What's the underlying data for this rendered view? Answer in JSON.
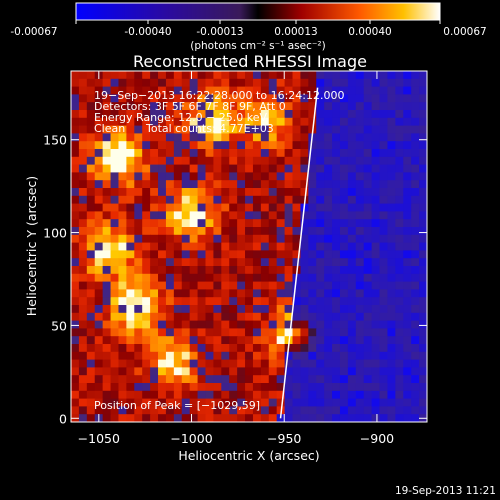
{
  "colorbar": {
    "tick_labels": [
      "-0.00067",
      "-0.00040",
      "-0.00013",
      "0.00013",
      "0.00040",
      "0.00067"
    ],
    "units_label": "(photons cm⁻² s⁻¹ asec⁻²)",
    "range": [
      -0.00067,
      0.00067
    ]
  },
  "chart_data": {
    "type": "heatmap",
    "title": "Reconstructed RHESSI Image",
    "xlabel": "Heliocentric X (arcsec)",
    "ylabel": "Heliocentric Y (arcsec)",
    "xlim": [
      -1065,
      -873
    ],
    "ylim": [
      -2,
      187
    ],
    "x_ticks": [
      -1050,
      -1000,
      -950,
      -900
    ],
    "y_ticks": [
      0,
      50,
      100,
      150
    ],
    "x_tick_labels": [
      "−1050",
      "−1000",
      "−950",
      "−900"
    ],
    "y_tick_labels": [
      "0",
      "50",
      "100",
      "150"
    ],
    "annotations": [
      "19−Sep−2013 16:22:28.000 to 16:24:12.000",
      "Detectors: 3F 5F 6F 7F 8F 9F, Att 0",
      "Energy Range: 12.0 − 25.0 keV",
      "Clean",
      "Total counts: 4.77E+03"
    ],
    "peak_label": "Position of Peak = [−1029,59]",
    "peak_position": [
      -1029,
      59
    ],
    "limb_line": [
      [
        -952,
        0
      ],
      [
        -932,
        178
      ]
    ],
    "heatmap_description_bright_regions": [
      {
        "x": -1040,
        "y": 140,
        "level": 0.95
      },
      {
        "x": -1030,
        "y": 60,
        "level": 0.9
      },
      {
        "x": -1000,
        "y": 110,
        "level": 0.8
      },
      {
        "x": -1045,
        "y": 90,
        "level": 0.8
      },
      {
        "x": -990,
        "y": 160,
        "level": 0.75
      },
      {
        "x": -945,
        "y": 45,
        "level": 0.8
      },
      {
        "x": -960,
        "y": 160,
        "level": 0.6
      },
      {
        "x": -1010,
        "y": 30,
        "level": 0.7
      }
    ]
  },
  "footer": {
    "timestamp": "19-Sep-2013 11:21"
  }
}
